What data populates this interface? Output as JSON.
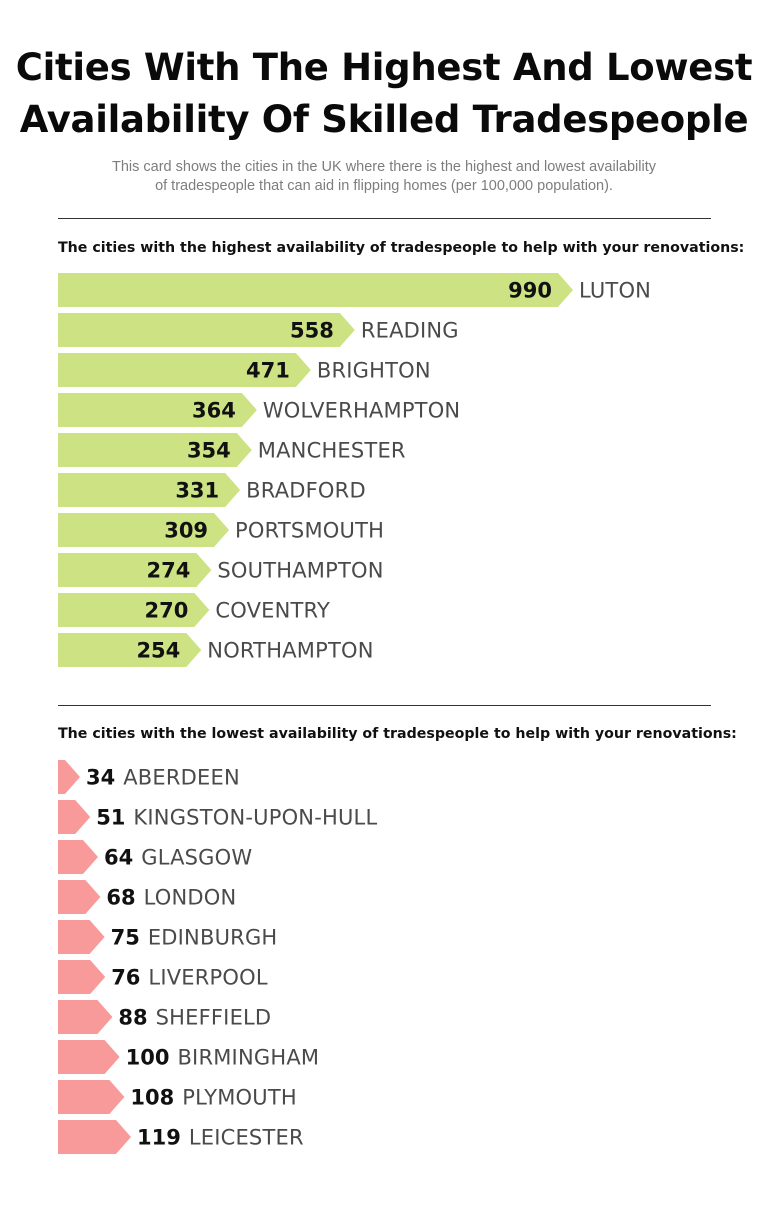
{
  "title_line1": "Cities With The Highest And Lowest",
  "title_line2": "Availability Of Skilled Tradespeople",
  "subtitle_line1": "This card shows the cities in the UK where there is the highest and lowest availability",
  "subtitle_line2": "of tradespeople that can aid in flipping homes (per 100,000 population).",
  "colors": {
    "highest": "#cde383",
    "lowest": "#f99a9a",
    "rule": "#333333"
  },
  "chart_data": [
    {
      "type": "bar",
      "title": "The cities with the highest availability of tradespeople to help with your renovations:",
      "orientation": "horizontal",
      "categories": [
        "LUTON",
        "READING",
        "BRIGHTON",
        "WOLVERHAMPTON",
        "MANCHESTER",
        "BRADFORD",
        "PORTSMOUTH",
        "SOUTHAMPTON",
        "COVENTRY",
        "NORTHAMPTON"
      ],
      "values": [
        990,
        558,
        471,
        364,
        354,
        331,
        309,
        274,
        270,
        254
      ],
      "xlabel": "",
      "ylabel": ""
    },
    {
      "type": "bar",
      "title": "The cities with the lowest availability of tradespeople to help with your renovations:",
      "orientation": "horizontal",
      "categories": [
        "ABERDEEN",
        "KINGSTON-UPON-HULL",
        "GLASGOW",
        "LONDON",
        "EDINBURGH",
        "LIVERPOOL",
        "SHEFFIELD",
        "BIRMINGHAM",
        "PLYMOUTH",
        "LEICESTER"
      ],
      "values": [
        34,
        51,
        64,
        68,
        75,
        76,
        88,
        100,
        108,
        119
      ],
      "xlabel": "",
      "ylabel": ""
    }
  ]
}
